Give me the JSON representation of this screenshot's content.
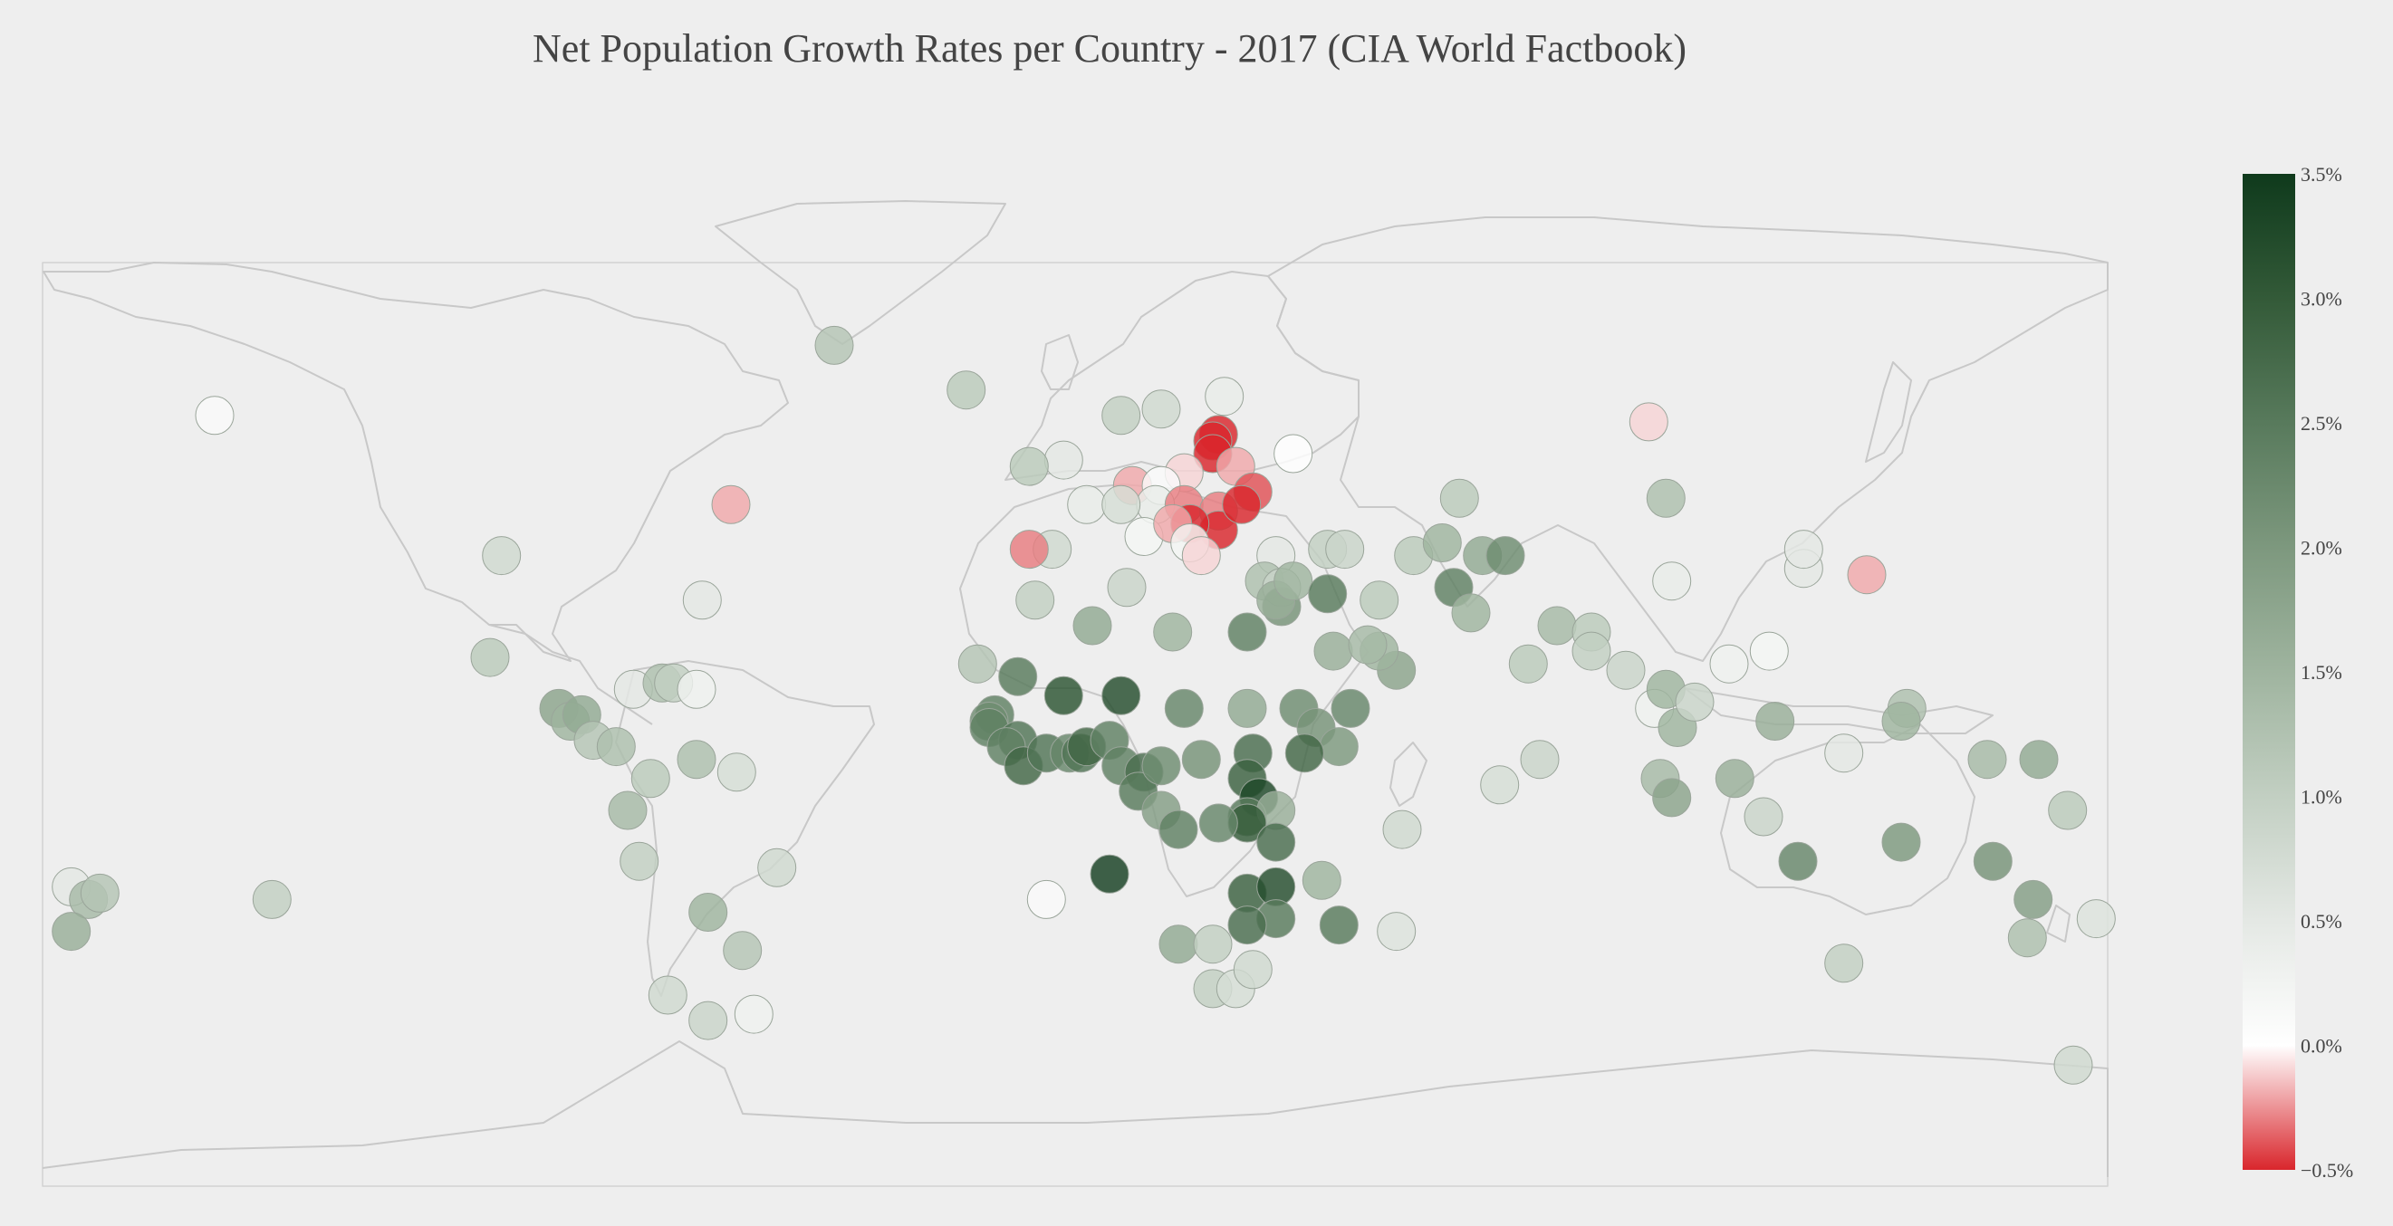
{
  "title": "Net Population Growth Rates per Country - 2017 (CIA World Factbook)",
  "colors": {
    "background": "#eeeeee",
    "land_outline": "#c8c8c8",
    "marker_outline": "#9aa59a",
    "scale": [
      {
        "v": -0.5,
        "c": "#d9262c"
      },
      {
        "v": 0.0,
        "c": "#ffffff"
      },
      {
        "v": 0.5,
        "c": "#e4e8e4"
      },
      {
        "v": 1.0,
        "c": "#c2cfc2"
      },
      {
        "v": 1.5,
        "c": "#9fb49f"
      },
      {
        "v": 2.0,
        "c": "#7d987e"
      },
      {
        "v": 2.5,
        "c": "#587a5c"
      },
      {
        "v": 3.0,
        "c": "#335a38"
      },
      {
        "v": 3.5,
        "c": "#0f3a1c"
      }
    ]
  },
  "colorbar": {
    "min": -0.5,
    "max": 3.5,
    "ticks": [
      "3.5%",
      "3.0%",
      "2.5%",
      "2.0%",
      "1.5%",
      "1.0%",
      "0.5%",
      "0.0%",
      "−0.5%"
    ],
    "tick_values": [
      3.5,
      3.0,
      2.5,
      2.0,
      1.5,
      1.0,
      0.5,
      0.0,
      -0.5
    ]
  },
  "chart_data": {
    "type": "scatter",
    "projection": "equirectangular",
    "lon_range": [
      -180,
      180
    ],
    "lat_range": [
      -60,
      85
    ],
    "points": [
      {
        "lon": -150,
        "lat": 61,
        "v": 0.1
      },
      {
        "lon": -100,
        "lat": 39,
        "v": 0.8
      },
      {
        "lon": -102,
        "lat": 23,
        "v": 1.1
      },
      {
        "lon": -60,
        "lat": 47,
        "v": -0.2
      },
      {
        "lon": -42,
        "lat": 72,
        "v": 1.2
      },
      {
        "lon": -19,
        "lat": 65,
        "v": 1.1
      },
      {
        "lon": -65,
        "lat": 32,
        "v": 0.5
      },
      {
        "lon": -90,
        "lat": 15,
        "v": 1.8
      },
      {
        "lon": -88,
        "lat": 13,
        "v": 1.5
      },
      {
        "lon": -86,
        "lat": 14,
        "v": 1.7
      },
      {
        "lon": -84,
        "lat": 10,
        "v": 1.2
      },
      {
        "lon": -80,
        "lat": 9,
        "v": 1.3
      },
      {
        "lon": -77,
        "lat": 18,
        "v": 0.5
      },
      {
        "lon": -72,
        "lat": 19,
        "v": 1.3
      },
      {
        "lon": -70,
        "lat": 19,
        "v": 1.0
      },
      {
        "lon": -66,
        "lat": 18,
        "v": 0.3
      },
      {
        "lon": -74,
        "lat": 4,
        "v": 1.1
      },
      {
        "lon": -66,
        "lat": 7,
        "v": 1.3
      },
      {
        "lon": -59,
        "lat": 5,
        "v": 0.7
      },
      {
        "lon": -78,
        "lat": -1,
        "v": 1.4
      },
      {
        "lon": -76,
        "lat": -9,
        "v": 1.0
      },
      {
        "lon": -52,
        "lat": -10,
        "v": 0.8
      },
      {
        "lon": -64,
        "lat": -17,
        "v": 1.5
      },
      {
        "lon": -58,
        "lat": -23,
        "v": 1.2
      },
      {
        "lon": -64,
        "lat": -34,
        "v": 0.9
      },
      {
        "lon": -71,
        "lat": -30,
        "v": 0.8
      },
      {
        "lon": -56,
        "lat": -33,
        "v": 0.3
      },
      {
        "lon": -175,
        "lat": -13,
        "v": 0.5
      },
      {
        "lon": -172,
        "lat": -15,
        "v": 1.4
      },
      {
        "lon": -170,
        "lat": -14,
        "v": 1.2
      },
      {
        "lon": -175,
        "lat": -20,
        "v": 1.6
      },
      {
        "lon": -140,
        "lat": -15,
        "v": 1.0
      },
      {
        "lon": -4,
        "lat": 40,
        "v": 0.8
      },
      {
        "lon": -2,
        "lat": 54,
        "v": 0.5
      },
      {
        "lon": -8,
        "lat": 53,
        "v": 1.1
      },
      {
        "lon": 2,
        "lat": 47,
        "v": 0.4
      },
      {
        "lon": -8,
        "lat": 40,
        "v": -0.3
      },
      {
        "lon": -7,
        "lat": 32,
        "v": 1.0
      },
      {
        "lon": 3,
        "lat": 28,
        "v": 1.7
      },
      {
        "lon": 9,
        "lat": 34,
        "v": 0.9
      },
      {
        "lon": 17,
        "lat": 27,
        "v": 1.5
      },
      {
        "lon": 30,
        "lat": 27,
        "v": 2.4
      },
      {
        "lon": 10,
        "lat": 50,
        "v": -0.2
      },
      {
        "lon": 15,
        "lat": 62,
        "v": 0.8
      },
      {
        "lon": 8,
        "lat": 61,
        "v": 1.0
      },
      {
        "lon": 26,
        "lat": 64,
        "v": 0.4
      },
      {
        "lon": 25,
        "lat": 58,
        "v": -0.6
      },
      {
        "lon": 24,
        "lat": 57,
        "v": -1.1
      },
      {
        "lon": 24,
        "lat": 55,
        "v": -1.1
      },
      {
        "lon": 28,
        "lat": 53,
        "v": -0.2
      },
      {
        "lon": 19,
        "lat": 52,
        "v": -0.1
      },
      {
        "lon": 15,
        "lat": 50,
        "v": 0.1
      },
      {
        "lon": 14,
        "lat": 47,
        "v": 0.4
      },
      {
        "lon": 8,
        "lat": 47,
        "v": 0.7
      },
      {
        "lon": 12,
        "lat": 42,
        "v": 0.2
      },
      {
        "lon": 19,
        "lat": 47,
        "v": -0.3
      },
      {
        "lon": 25,
        "lat": 46,
        "v": -0.3
      },
      {
        "lon": 25,
        "lat": 43,
        "v": -0.6
      },
      {
        "lon": 31,
        "lat": 49,
        "v": -0.4
      },
      {
        "lon": 29,
        "lat": 47,
        "v": -1.1
      },
      {
        "lon": 20,
        "lat": 44,
        "v": -0.5
      },
      {
        "lon": 17,
        "lat": 44,
        "v": -0.2
      },
      {
        "lon": 20,
        "lat": 41,
        "v": 0.2
      },
      {
        "lon": 22,
        "lat": 39,
        "v": -0.1
      },
      {
        "lon": 35,
        "lat": 39,
        "v": 0.5
      },
      {
        "lon": 38,
        "lat": 55,
        "v": 0.0
      },
      {
        "lon": 100,
        "lat": 60,
        "v": -0.1
      },
      {
        "lon": 33,
        "lat": 35,
        "v": 1.3
      },
      {
        "lon": 36,
        "lat": 34,
        "v": 0.9
      },
      {
        "lon": 36,
        "lat": 31,
        "v": 2.1
      },
      {
        "lon": 35,
        "lat": 32,
        "v": 1.6
      },
      {
        "lon": 38,
        "lat": 35,
        "v": 1.5
      },
      {
        "lon": 44,
        "lat": 33,
        "v": 2.5
      },
      {
        "lon": 45,
        "lat": 24,
        "v": 1.6
      },
      {
        "lon": 53,
        "lat": 32,
        "v": 1.1
      },
      {
        "lon": 44,
        "lat": 40,
        "v": 1.0
      },
      {
        "lon": 47,
        "lat": 40,
        "v": 0.9
      },
      {
        "lon": 56,
        "lat": 21,
        "v": 1.8
      },
      {
        "lon": 48,
        "lat": 15,
        "v": 2.3
      },
      {
        "lon": 53,
        "lat": 24,
        "v": 1.5
      },
      {
        "lon": 51,
        "lat": 25,
        "v": 1.4
      },
      {
        "lon": 66,
        "lat": 34,
        "v": 2.4
      },
      {
        "lon": 69,
        "lat": 30,
        "v": 1.5
      },
      {
        "lon": 71,
        "lat": 39,
        "v": 1.7
      },
      {
        "lon": 59,
        "lat": 39,
        "v": 1.1
      },
      {
        "lon": 64,
        "lat": 41,
        "v": 1.5
      },
      {
        "lon": 75,
        "lat": 39,
        "v": 2.2
      },
      {
        "lon": 67,
        "lat": 48,
        "v": 1.1
      },
      {
        "lon": 79,
        "lat": 22,
        "v": 1.1
      },
      {
        "lon": 84,
        "lat": 28,
        "v": 1.4
      },
      {
        "lon": 90,
        "lat": 27,
        "v": 1.1
      },
      {
        "lon": 90,
        "lat": 24,
        "v": 1.0
      },
      {
        "lon": 74,
        "lat": 3,
        "v": 0.7
      },
      {
        "lon": 81,
        "lat": 7,
        "v": 0.9
      },
      {
        "lon": 96,
        "lat": 21,
        "v": 0.9
      },
      {
        "lon": 101,
        "lat": 15,
        "v": 0.3
      },
      {
        "lon": 103,
        "lat": 18,
        "v": 1.5
      },
      {
        "lon": 105,
        "lat": 12,
        "v": 1.5
      },
      {
        "lon": 108,
        "lat": 16,
        "v": 0.9
      },
      {
        "lon": 103,
        "lat": 48,
        "v": 1.3
      },
      {
        "lon": 104,
        "lat": 35,
        "v": 0.4
      },
      {
        "lon": 114,
        "lat": 22,
        "v": 0.3
      },
      {
        "lon": 121,
        "lat": 24,
        "v": 0.2
      },
      {
        "lon": 122,
        "lat": 13,
        "v": 1.6
      },
      {
        "lon": 127,
        "lat": 37,
        "v": 0.5
      },
      {
        "lon": 127,
        "lat": 40,
        "v": 0.5
      },
      {
        "lon": 138,
        "lat": 36,
        "v": -0.2
      },
      {
        "lon": 102,
        "lat": 4,
        "v": 1.4
      },
      {
        "lon": 104,
        "lat": 1,
        "v": 1.8
      },
      {
        "lon": 115,
        "lat": 4,
        "v": 1.6
      },
      {
        "lon": 120,
        "lat": -2,
        "v": 0.9
      },
      {
        "lon": 126,
        "lat": -9,
        "v": 2.3
      },
      {
        "lon": 134,
        "lat": 8,
        "v": 0.5
      },
      {
        "lon": 145,
        "lat": 15,
        "v": 1.3
      },
      {
        "lon": 144,
        "lat": 13,
        "v": 1.5
      },
      {
        "lon": 144,
        "lat": -6,
        "v": 2.0
      },
      {
        "lon": 160,
        "lat": -9,
        "v": 2.1
      },
      {
        "lon": 167,
        "lat": -15,
        "v": 1.9
      },
      {
        "lon": 173,
        "lat": -1,
        "v": 1.1
      },
      {
        "lon": 178,
        "lat": -18,
        "v": 0.6
      },
      {
        "lon": 166,
        "lat": -21,
        "v": 1.3
      },
      {
        "lon": 159,
        "lat": 7,
        "v": 1.4
      },
      {
        "lon": 168,
        "lat": 7,
        "v": 1.7
      },
      {
        "lon": 134,
        "lat": -25,
        "v": 1.0
      },
      {
        "lon": 174,
        "lat": -41,
        "v": 0.8
      },
      {
        "lon": -17,
        "lat": 22,
        "v": 1.2
      },
      {
        "lon": -10,
        "lat": 20,
        "v": 2.5
      },
      {
        "lon": -2,
        "lat": 17,
        "v": 3.1
      },
      {
        "lon": 8,
        "lat": 17,
        "v": 3.2
      },
      {
        "lon": 19,
        "lat": 15,
        "v": 2.3
      },
      {
        "lon": 30,
        "lat": 15,
        "v": 1.7
      },
      {
        "lon": 39,
        "lat": 15,
        "v": 2.2
      },
      {
        "lon": 42,
        "lat": 12,
        "v": 2.1
      },
      {
        "lon": 46,
        "lat": 9,
        "v": 2.0
      },
      {
        "lon": 40,
        "lat": 8,
        "v": 2.8
      },
      {
        "lon": -14,
        "lat": 14,
        "v": 2.4
      },
      {
        "lon": -15,
        "lat": 13,
        "v": 2.2
      },
      {
        "lon": -15,
        "lat": 12,
        "v": 2.4
      },
      {
        "lon": -10,
        "lat": 10,
        "v": 2.6
      },
      {
        "lon": -12,
        "lat": 9,
        "v": 2.4
      },
      {
        "lon": -9,
        "lat": 6,
        "v": 2.8
      },
      {
        "lon": -5,
        "lat": 8,
        "v": 2.6
      },
      {
        "lon": -1,
        "lat": 8,
        "v": 2.3
      },
      {
        "lon": 1,
        "lat": 8,
        "v": 2.6
      },
      {
        "lon": 2,
        "lat": 9,
        "v": 2.8
      },
      {
        "lon": 6,
        "lat": 10,
        "v": 2.4
      },
      {
        "lon": 8,
        "lat": 6,
        "v": 2.4
      },
      {
        "lon": 12,
        "lat": 5,
        "v": 2.7
      },
      {
        "lon": 11,
        "lat": 2,
        "v": 2.5
      },
      {
        "lon": 15,
        "lat": 6,
        "v": 2.2
      },
      {
        "lon": 22,
        "lat": 7,
        "v": 2.1
      },
      {
        "lon": 31,
        "lat": 8,
        "v": 2.7
      },
      {
        "lon": 30,
        "lat": 4,
        "v": 2.9
      },
      {
        "lon": 32,
        "lat": 1,
        "v": 3.3
      },
      {
        "lon": 30,
        "lat": -2,
        "v": 2.5
      },
      {
        "lon": 35,
        "lat": -1,
        "v": 1.6
      },
      {
        "lon": 30,
        "lat": -3,
        "v": 3.0
      },
      {
        "lon": 35,
        "lat": -6,
        "v": 2.7
      },
      {
        "lon": 15,
        "lat": -1,
        "v": 1.9
      },
      {
        "lon": 18,
        "lat": -4,
        "v": 2.4
      },
      {
        "lon": 6,
        "lat": -11,
        "v": 3.4
      },
      {
        "lon": 25,
        "lat": -3,
        "v": 2.3
      },
      {
        "lon": 30,
        "lat": -14,
        "v": 2.9
      },
      {
        "lon": 35,
        "lat": -13,
        "v": 3.2
      },
      {
        "lon": 35,
        "lat": -18,
        "v": 2.5
      },
      {
        "lon": 30,
        "lat": -19,
        "v": 2.7
      },
      {
        "lon": 18,
        "lat": -22,
        "v": 1.7
      },
      {
        "lon": 24,
        "lat": -22,
        "v": 1.0
      },
      {
        "lon": 24,
        "lat": -29,
        "v": 1.0
      },
      {
        "lon": 28,
        "lat": -29,
        "v": 0.7
      },
      {
        "lon": 31,
        "lat": -26,
        "v": 0.8
      },
      {
        "lon": 46,
        "lat": -19,
        "v": 2.5
      },
      {
        "lon": 56,
        "lat": -20,
        "v": 0.6
      },
      {
        "lon": 57,
        "lat": -4,
        "v": 0.8
      },
      {
        "lon": 43,
        "lat": -12,
        "v": 1.5
      },
      {
        "lon": -5,
        "lat": -15,
        "v": 0.1
      }
    ]
  }
}
